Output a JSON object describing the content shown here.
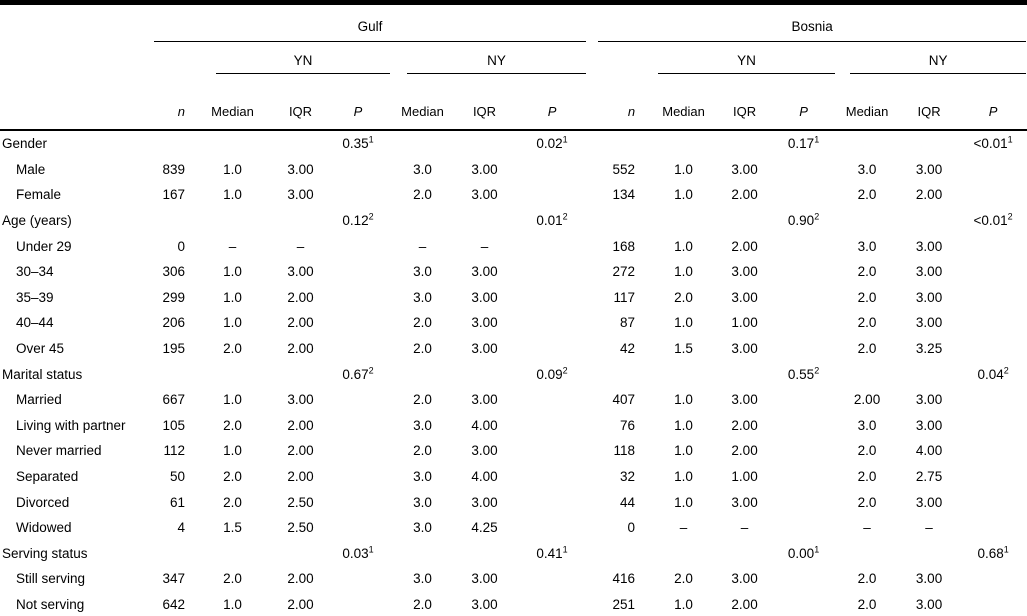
{
  "table": {
    "groups": [
      {
        "label": "Gulf"
      },
      {
        "label": "Bosnia"
      }
    ],
    "subgroups": [
      "YN",
      "NY"
    ],
    "col_headers": {
      "n": "n",
      "median": "Median",
      "iqr": "IQR",
      "p": "P"
    },
    "rows": [
      {
        "label": "Gender",
        "category": true,
        "cells": [
          "",
          "",
          "",
          {
            "v": "0.35",
            "sup": "1"
          },
          "",
          "",
          {
            "v": "0.02",
            "sup": "1"
          },
          "",
          "",
          "",
          {
            "v": "0.17",
            "sup": "1"
          },
          "",
          "",
          {
            "v": "<0.01",
            "sup": "1"
          }
        ]
      },
      {
        "label": "Male",
        "category": false,
        "cells": [
          "839",
          "1.0",
          "3.00",
          "",
          "3.0",
          "3.00",
          "",
          "552",
          "1.0",
          "3.00",
          "",
          "3.0",
          "3.00",
          ""
        ]
      },
      {
        "label": "Female",
        "category": false,
        "cells": [
          "167",
          "1.0",
          "3.00",
          "",
          "2.0",
          "3.00",
          "",
          "134",
          "1.0",
          "2.00",
          "",
          "2.0",
          "2.00",
          ""
        ]
      },
      {
        "label": "Age (years)",
        "category": true,
        "cells": [
          "",
          "",
          "",
          {
            "v": "0.12",
            "sup": "2"
          },
          "",
          "",
          {
            "v": "0.01",
            "sup": "2"
          },
          "",
          "",
          "",
          {
            "v": "0.90",
            "sup": "2"
          },
          "",
          "",
          {
            "v": "<0.01",
            "sup": "2"
          }
        ]
      },
      {
        "label": "Under 29",
        "category": false,
        "cells": [
          "0",
          "–",
          "–",
          "",
          "–",
          "–",
          "",
          "168",
          "1.0",
          "2.00",
          "",
          "3.0",
          "3.00",
          ""
        ]
      },
      {
        "label": "30–34",
        "category": false,
        "cells": [
          "306",
          "1.0",
          "3.00",
          "",
          "3.0",
          "3.00",
          "",
          "272",
          "1.0",
          "3.00",
          "",
          "2.0",
          "3.00",
          ""
        ]
      },
      {
        "label": "35–39",
        "category": false,
        "cells": [
          "299",
          "1.0",
          "2.00",
          "",
          "3.0",
          "3.00",
          "",
          "117",
          "2.0",
          "3.00",
          "",
          "2.0",
          "3.00",
          ""
        ]
      },
      {
        "label": "40–44",
        "category": false,
        "cells": [
          "206",
          "1.0",
          "2.00",
          "",
          "2.0",
          "3.00",
          "",
          "87",
          "1.0",
          "1.00",
          "",
          "2.0",
          "3.00",
          ""
        ]
      },
      {
        "label": "Over 45",
        "category": false,
        "cells": [
          "195",
          "2.0",
          "2.00",
          "",
          "2.0",
          "3.00",
          "",
          "42",
          "1.5",
          "3.00",
          "",
          "2.0",
          "3.25",
          ""
        ]
      },
      {
        "label": "Marital status",
        "category": true,
        "cells": [
          "",
          "",
          "",
          {
            "v": "0.67",
            "sup": "2"
          },
          "",
          "",
          {
            "v": "0.09",
            "sup": "2"
          },
          "",
          "",
          "",
          {
            "v": "0.55",
            "sup": "2"
          },
          "",
          "",
          {
            "v": "0.04",
            "sup": "2"
          }
        ]
      },
      {
        "label": "Married",
        "category": false,
        "cells": [
          "667",
          "1.0",
          "3.00",
          "",
          "2.0",
          "3.00",
          "",
          "407",
          "1.0",
          "3.00",
          "",
          "2.00",
          "3.00",
          ""
        ]
      },
      {
        "label": "Living with partner",
        "category": false,
        "cells": [
          "105",
          "2.0",
          "2.00",
          "",
          "3.0",
          "4.00",
          "",
          "76",
          "1.0",
          "2.00",
          "",
          "3.0",
          "3.00",
          ""
        ]
      },
      {
        "label": "Never married",
        "category": false,
        "cells": [
          "112",
          "1.0",
          "2.00",
          "",
          "2.0",
          "3.00",
          "",
          "118",
          "1.0",
          "2.00",
          "",
          "2.0",
          "4.00",
          ""
        ]
      },
      {
        "label": "Separated",
        "category": false,
        "cells": [
          "50",
          "2.0",
          "2.00",
          "",
          "3.0",
          "4.00",
          "",
          "32",
          "1.0",
          "1.00",
          "",
          "2.0",
          "2.75",
          ""
        ]
      },
      {
        "label": "Divorced",
        "category": false,
        "cells": [
          "61",
          "2.0",
          "2.50",
          "",
          "3.0",
          "3.00",
          "",
          "44",
          "1.0",
          "3.00",
          "",
          "2.0",
          "3.00",
          ""
        ]
      },
      {
        "label": "Widowed",
        "category": false,
        "cells": [
          "4",
          "1.5",
          "2.50",
          "",
          "3.0",
          "4.25",
          "",
          "0",
          "–",
          "–",
          "",
          "–",
          "–",
          ""
        ]
      },
      {
        "label": "Serving status",
        "category": true,
        "cells": [
          "",
          "",
          "",
          {
            "v": "0.03",
            "sup": "1"
          },
          "",
          "",
          {
            "v": "0.41",
            "sup": "1"
          },
          "",
          "",
          "",
          {
            "v": "0.00",
            "sup": "1"
          },
          "",
          "",
          {
            "v": "0.68",
            "sup": "1"
          }
        ]
      },
      {
        "label": "Still serving",
        "category": false,
        "cells": [
          "347",
          "2.0",
          "2.00",
          "",
          "3.0",
          "3.00",
          "",
          "416",
          "2.0",
          "3.00",
          "",
          "2.0",
          "3.00",
          ""
        ]
      },
      {
        "label": "Not serving",
        "category": false,
        "cells": [
          "642",
          "1.0",
          "2.00",
          "",
          "2.0",
          "3.00",
          "",
          "251",
          "1.0",
          "2.00",
          "",
          "2.0",
          "3.00",
          ""
        ]
      }
    ]
  }
}
